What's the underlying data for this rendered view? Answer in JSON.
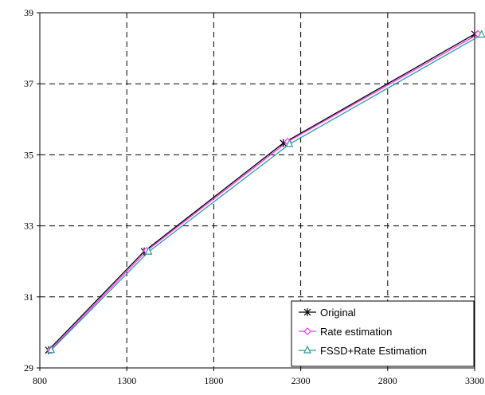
{
  "chart_data": {
    "type": "line",
    "title": "",
    "xlabel": "",
    "ylabel": "",
    "xlim": [
      800,
      3300
    ],
    "ylim": [
      29,
      39
    ],
    "xticks": [
      800,
      1300,
      1800,
      2300,
      2800,
      3300
    ],
    "yticks": [
      29,
      31,
      33,
      35,
      37,
      39
    ],
    "grid": true,
    "legend_position": "bottom-right",
    "series": [
      {
        "name": "Original",
        "color": "#000000",
        "marker": "asterisk",
        "x": [
          850,
          1400,
          2200,
          3300
        ],
        "y": [
          29.5,
          32.28,
          35.33,
          38.4
        ]
      },
      {
        "name": "Rate estimation",
        "color": "#ff33ff",
        "marker": "diamond",
        "x": [
          860,
          1415,
          2225,
          3320
        ],
        "y": [
          29.5,
          32.3,
          35.37,
          38.4
        ]
      },
      {
        "name": "FSSD+Rate Estimation",
        "color": "#339999",
        "marker": "triangle",
        "x": [
          865,
          1425,
          2235,
          3340
        ],
        "y": [
          29.5,
          32.27,
          35.3,
          38.38
        ]
      }
    ]
  }
}
